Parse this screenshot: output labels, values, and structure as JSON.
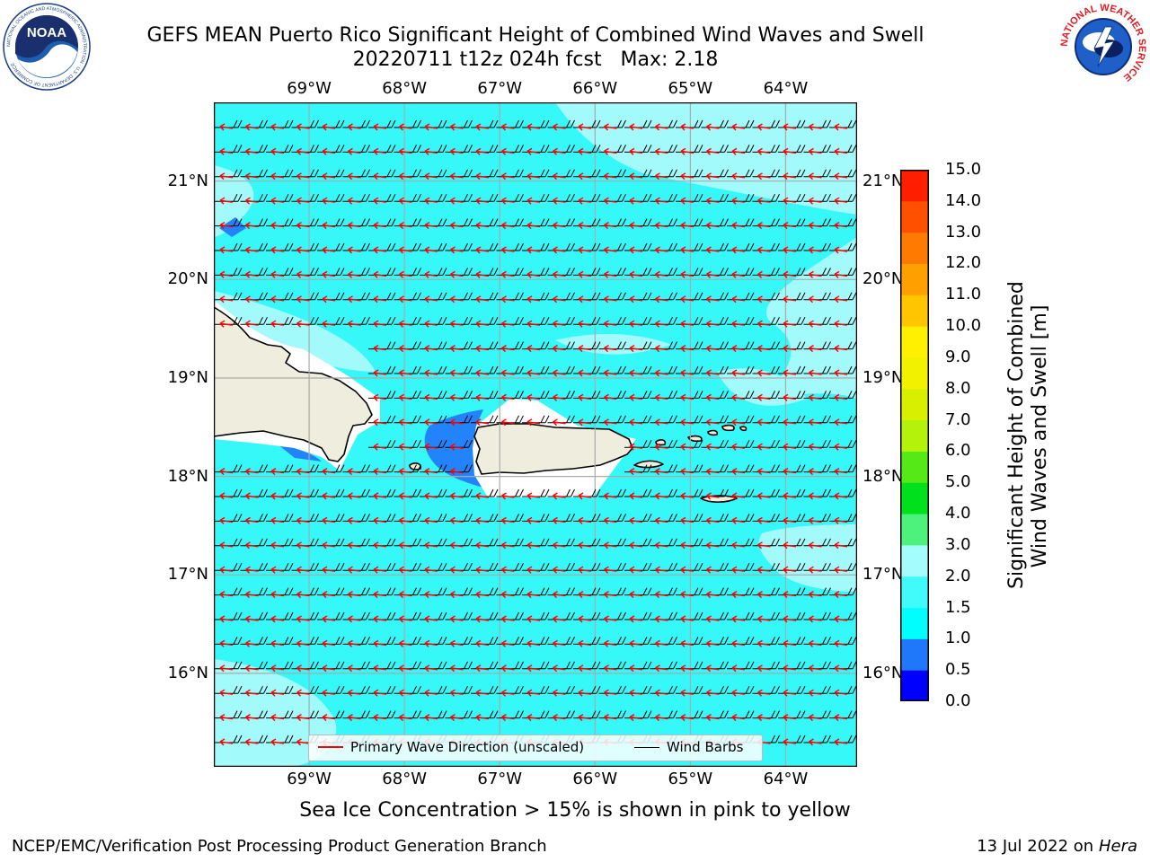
{
  "header": {
    "title_line1": "GEFS MEAN Puerto Rico Significant Height of Combined Wind Waves and Swell",
    "title_line2": "20220711 t12z 024h fcst   Max: 2.18"
  },
  "logos": {
    "left": {
      "text": "NOAA",
      "ring_text": "NATIONAL OCEANIC AND ATMOSPHERIC ADMINISTRATION · U.S. DEPARTMENT OF COMMERCE"
    },
    "right": {
      "ring_text": "NATIONAL WEATHER SERVICE"
    }
  },
  "map": {
    "lon_ticks": [
      "69°W",
      "68°W",
      "67°W",
      "66°W",
      "65°W",
      "64°W"
    ],
    "lon_values": [
      -69,
      -68,
      -67,
      -66,
      -65,
      -64
    ],
    "lat_ticks": [
      "21°N",
      "20°N",
      "19°N",
      "18°N",
      "17°N",
      "16°N"
    ],
    "lat_values": [
      21,
      20,
      19,
      18,
      17,
      16
    ],
    "extent": {
      "lon_min": -70,
      "lon_max": -63.25,
      "lat_min": 15.05,
      "lat_max": 21.8
    },
    "colors": {
      "ocean": "#37f8f8",
      "ocean_light": "#a2fafa",
      "ocean_deep": "#2383fa",
      "land": "#efedde",
      "grid": "#aaaaaa",
      "wave_arrow": "#ff0000",
      "wind_barb": "#000000"
    },
    "legend": {
      "wave_label": "Primary Wave Direction (unscaled)",
      "wind_label": "Wind Barbs"
    }
  },
  "colorbar": {
    "label_line1": "Significant Height of Combined",
    "label_line2": "Wind Waves and Swell [m]",
    "tick_labels": [
      "15.0",
      "14.0",
      "13.0",
      "12.0",
      "11.0",
      "10.0",
      "9.0",
      "8.0",
      "7.0",
      "6.0",
      "5.0",
      "4.0",
      "3.0",
      "2.0",
      "1.5",
      "1.0",
      "0.5",
      "0.0"
    ],
    "bins": [
      {
        "from": 0.0,
        "to": 0.5,
        "color": "#0000ff"
      },
      {
        "from": 0.5,
        "to": 1.0,
        "color": "#1f78fa"
      },
      {
        "from": 1.0,
        "to": 1.5,
        "color": "#00fefe"
      },
      {
        "from": 1.5,
        "to": 2.0,
        "color": "#41fafa"
      },
      {
        "from": 2.0,
        "to": 3.0,
        "color": "#a5fcfc"
      },
      {
        "from": 3.0,
        "to": 4.0,
        "color": "#4cf27c"
      },
      {
        "from": 4.0,
        "to": 5.0,
        "color": "#00e01c"
      },
      {
        "from": 5.0,
        "to": 6.0,
        "color": "#55ea17"
      },
      {
        "from": 6.0,
        "to": 7.0,
        "color": "#b4f20c"
      },
      {
        "from": 7.0,
        "to": 8.0,
        "color": "#d8f000"
      },
      {
        "from": 8.0,
        "to": 9.0,
        "color": "#f2f200"
      },
      {
        "from": 9.0,
        "to": 10.0,
        "color": "#fff000"
      },
      {
        "from": 10.0,
        "to": 11.0,
        "color": "#ffc600"
      },
      {
        "from": 11.0,
        "to": 12.0,
        "color": "#ffa000"
      },
      {
        "from": 12.0,
        "to": 13.0,
        "color": "#ff7a00"
      },
      {
        "from": 13.0,
        "to": 14.0,
        "color": "#ff5000"
      },
      {
        "from": 14.0,
        "to": 15.0,
        "color": "#ff1e00"
      }
    ]
  },
  "notes": {
    "sea_ice": "Sea Ice Concentration > 15% is shown in pink to yellow",
    "footer_left": "NCEP/EMC/Verification Post Processing Product Generation Branch",
    "footer_right_prefix": "13 Jul 2022 on ",
    "footer_right_host": "Hera"
  }
}
